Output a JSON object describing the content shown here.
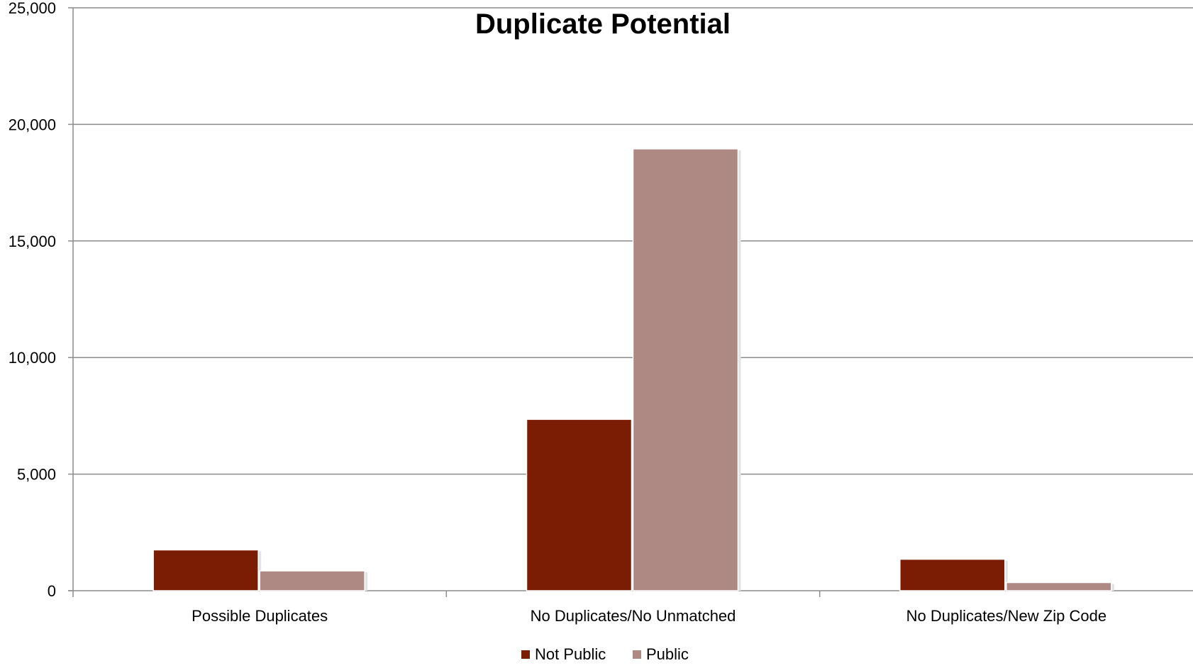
{
  "chart_data": {
    "type": "bar",
    "title": "Duplicate Potential",
    "categories": [
      "Possible Duplicates",
      "No Duplicates/No Unmatched",
      "No Duplicates/New Zip Code"
    ],
    "series": [
      {
        "name": "Not Public",
        "color": "#7b1c05",
        "values": [
          1750,
          7350,
          1350
        ]
      },
      {
        "name": "Public",
        "color": "#ae8882",
        "values": [
          850,
          18950,
          350
        ]
      }
    ],
    "yticks": [
      "0",
      "5,000",
      "10,000",
      "15,000",
      "20,000",
      "25,000"
    ],
    "ylim": [
      0,
      25000
    ],
    "grid": true,
    "legend_position": "bottom-center",
    "xlabel": "",
    "ylabel": ""
  }
}
